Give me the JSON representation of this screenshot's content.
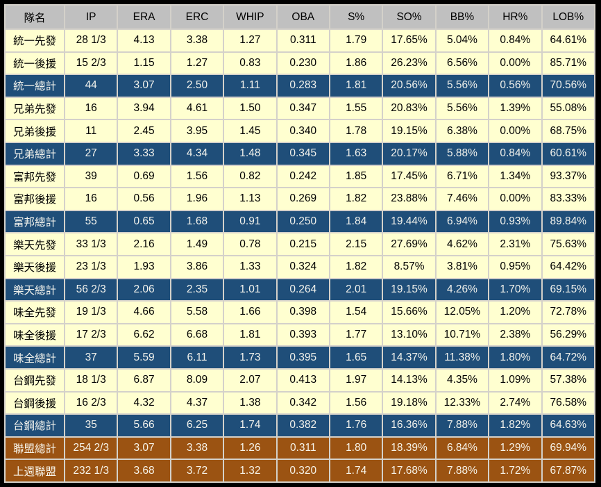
{
  "colors": {
    "outer_border": "#000000",
    "grid": "#d4d1ca",
    "header_bg": "#c0c0c0",
    "header_text": "#000000",
    "row_bg": "#ffffd0",
    "row_text": "#000000",
    "total_bg": "#1f4e79",
    "total_text": "#f2f2ec",
    "league_bg": "#9b5312",
    "league_text": "#f7f4ea"
  },
  "chart_data": {
    "type": "table",
    "columns": [
      "隊名",
      "IP",
      "ERA",
      "ERC",
      "WHIP",
      "OBA",
      "S%",
      "SO%",
      "BB%",
      "HR%",
      "LOB%"
    ],
    "rows": [
      {
        "style": "normal",
        "cells": [
          "統一先發",
          "28 1/3",
          "4.13",
          "3.38",
          "1.27",
          "0.311",
          "1.79",
          "17.65%",
          "5.04%",
          "0.84%",
          "64.61%"
        ]
      },
      {
        "style": "normal",
        "cells": [
          "統一後援",
          "15 2/3",
          "1.15",
          "1.27",
          "0.83",
          "0.230",
          "1.86",
          "26.23%",
          "6.56%",
          "0.00%",
          "85.71%"
        ]
      },
      {
        "style": "total",
        "cells": [
          "統一總計",
          "44",
          "3.07",
          "2.50",
          "1.11",
          "0.283",
          "1.81",
          "20.56%",
          "5.56%",
          "0.56%",
          "70.56%"
        ]
      },
      {
        "style": "normal",
        "cells": [
          "兄弟先發",
          "16",
          "3.94",
          "4.61",
          "1.50",
          "0.347",
          "1.55",
          "20.83%",
          "5.56%",
          "1.39%",
          "55.08%"
        ]
      },
      {
        "style": "normal",
        "cells": [
          "兄弟後援",
          "11",
          "2.45",
          "3.95",
          "1.45",
          "0.340",
          "1.78",
          "19.15%",
          "6.38%",
          "0.00%",
          "68.75%"
        ]
      },
      {
        "style": "total",
        "cells": [
          "兄弟總計",
          "27",
          "3.33",
          "4.34",
          "1.48",
          "0.345",
          "1.63",
          "20.17%",
          "5.88%",
          "0.84%",
          "60.61%"
        ]
      },
      {
        "style": "normal",
        "cells": [
          "富邦先發",
          "39",
          "0.69",
          "1.56",
          "0.82",
          "0.242",
          "1.85",
          "17.45%",
          "6.71%",
          "1.34%",
          "93.37%"
        ]
      },
      {
        "style": "normal",
        "cells": [
          "富邦後援",
          "16",
          "0.56",
          "1.96",
          "1.13",
          "0.269",
          "1.82",
          "23.88%",
          "7.46%",
          "0.00%",
          "83.33%"
        ]
      },
      {
        "style": "total",
        "cells": [
          "富邦總計",
          "55",
          "0.65",
          "1.68",
          "0.91",
          "0.250",
          "1.84",
          "19.44%",
          "6.94%",
          "0.93%",
          "89.84%"
        ]
      },
      {
        "style": "normal",
        "cells": [
          "樂天先發",
          "33 1/3",
          "2.16",
          "1.49",
          "0.78",
          "0.215",
          "2.15",
          "27.69%",
          "4.62%",
          "2.31%",
          "75.63%"
        ]
      },
      {
        "style": "normal",
        "cells": [
          "樂天後援",
          "23 1/3",
          "1.93",
          "3.86",
          "1.33",
          "0.324",
          "1.82",
          "8.57%",
          "3.81%",
          "0.95%",
          "64.42%"
        ]
      },
      {
        "style": "total",
        "cells": [
          "樂天總計",
          "56 2/3",
          "2.06",
          "2.35",
          "1.01",
          "0.264",
          "2.01",
          "19.15%",
          "4.26%",
          "1.70%",
          "69.15%"
        ]
      },
      {
        "style": "normal",
        "cells": [
          "味全先發",
          "19 1/3",
          "4.66",
          "5.58",
          "1.66",
          "0.398",
          "1.54",
          "15.66%",
          "12.05%",
          "1.20%",
          "72.78%"
        ]
      },
      {
        "style": "normal",
        "cells": [
          "味全後援",
          "17 2/3",
          "6.62",
          "6.68",
          "1.81",
          "0.393",
          "1.77",
          "13.10%",
          "10.71%",
          "2.38%",
          "56.29%"
        ]
      },
      {
        "style": "total",
        "cells": [
          "味全總計",
          "37",
          "5.59",
          "6.11",
          "1.73",
          "0.395",
          "1.65",
          "14.37%",
          "11.38%",
          "1.80%",
          "64.72%"
        ]
      },
      {
        "style": "normal",
        "cells": [
          "台鋼先發",
          "18 1/3",
          "6.87",
          "8.09",
          "2.07",
          "0.413",
          "1.97",
          "14.13%",
          "4.35%",
          "1.09%",
          "57.38%"
        ]
      },
      {
        "style": "normal",
        "cells": [
          "台鋼後援",
          "16 2/3",
          "4.32",
          "4.37",
          "1.38",
          "0.342",
          "1.56",
          "19.18%",
          "12.33%",
          "2.74%",
          "76.58%"
        ]
      },
      {
        "style": "total",
        "cells": [
          "台鋼總計",
          "35",
          "5.66",
          "6.25",
          "1.74",
          "0.382",
          "1.76",
          "16.36%",
          "7.88%",
          "1.82%",
          "64.63%"
        ]
      },
      {
        "style": "league",
        "cells": [
          "聯盟總計",
          "254 2/3",
          "3.07",
          "3.38",
          "1.26",
          "0.311",
          "1.80",
          "18.39%",
          "6.84%",
          "1.29%",
          "69.94%"
        ]
      },
      {
        "style": "league",
        "cells": [
          "上週聯盟",
          "232 1/3",
          "3.68",
          "3.72",
          "1.32",
          "0.320",
          "1.74",
          "17.68%",
          "7.88%",
          "1.72%",
          "67.87%"
        ]
      }
    ]
  }
}
